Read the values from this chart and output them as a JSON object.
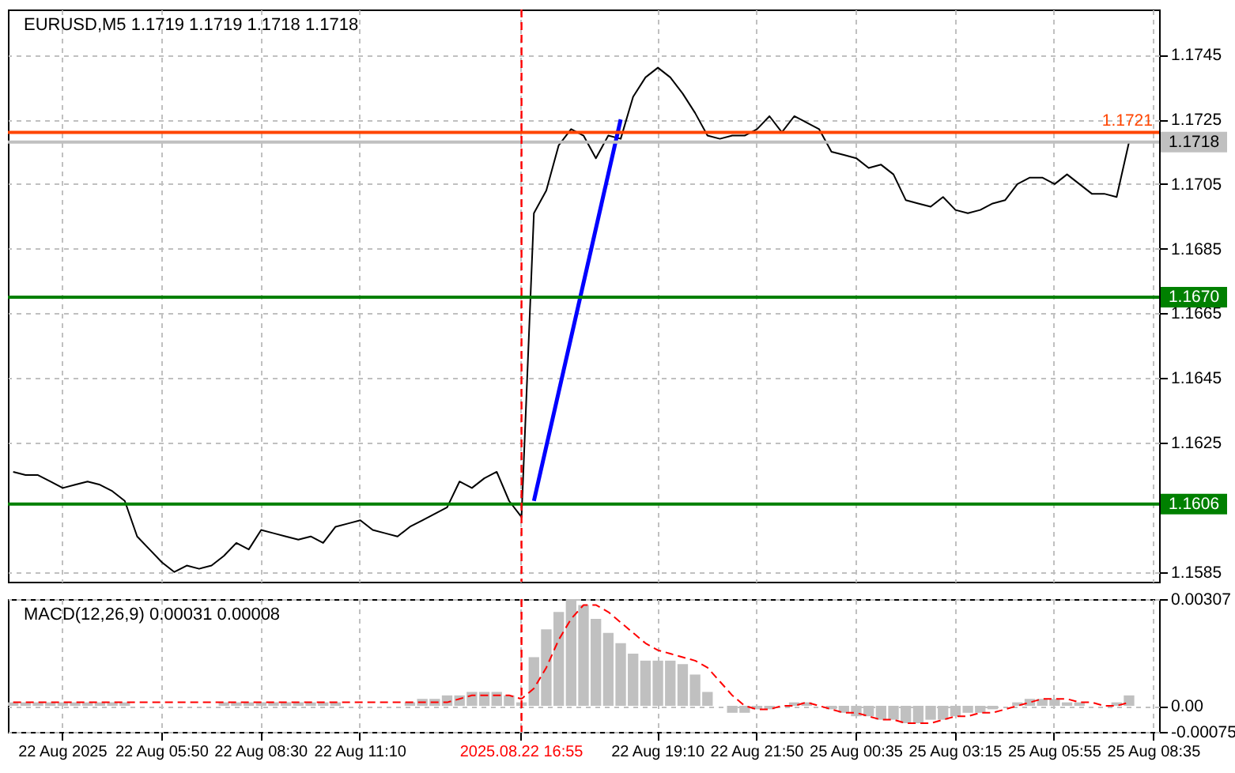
{
  "chart_data": [
    {
      "type": "line",
      "title": "EURUSD,M5 1.1719 1.1719 1.1718 1.1718",
      "categories": [
        null,
        null,
        null,
        null,
        "22 Aug 2025",
        null,
        null,
        null,
        null,
        null,
        null,
        null,
        "22 Aug 05:50",
        null,
        null,
        null,
        null,
        null,
        null,
        null,
        "22 Aug 08:30",
        null,
        null,
        null,
        null,
        null,
        null,
        null,
        "22 Aug 11:10",
        null,
        null,
        null,
        null,
        null,
        null,
        null,
        null,
        null,
        null,
        null,
        null,
        "2025.08.22 16:55",
        null,
        null,
        null,
        null,
        null,
        null,
        null,
        null,
        null,
        null,
        "22 Aug 19:10",
        null,
        null,
        null,
        null,
        null,
        null,
        null,
        "22 Aug 21:50",
        null,
        null,
        null,
        null,
        null,
        null,
        null,
        "25 Aug 00:35",
        null,
        null,
        null,
        null,
        null,
        null,
        null,
        "25 Aug 03:15",
        null,
        null,
        null,
        null,
        null,
        null,
        null,
        "25 Aug 05:55",
        null,
        null,
        null,
        null,
        null,
        null,
        null,
        "25 Aug 08:35"
      ],
      "series": [
        {
          "color": "#000000",
          "values": [
            1.1616,
            1.1615,
            1.1615,
            1.1613,
            1.1611,
            1.1612,
            1.1613,
            1.1612,
            1.161,
            1.1607,
            1.1596,
            1.1592,
            1.1588,
            1.1585,
            1.1587,
            1.1586,
            1.1587,
            1.159,
            1.1594,
            1.1592,
            1.1598,
            1.1597,
            1.1596,
            1.1595,
            1.1596,
            1.1594,
            1.1599,
            1.16,
            1.1601,
            1.1598,
            1.1597,
            1.1596,
            1.1599,
            1.1601,
            1.1603,
            1.1605,
            1.1613,
            1.1611,
            1.1614,
            1.1616,
            1.1607,
            1.1602,
            1.1696,
            1.1703,
            1.1717,
            1.1722,
            1.172,
            1.1713,
            1.172,
            1.1719,
            1.1732,
            1.1738,
            1.1741,
            1.1738,
            1.1733,
            1.1727,
            1.172,
            1.1719,
            1.172,
            1.172,
            1.1722,
            1.1726,
            1.1721,
            1.1726,
            1.1724,
            1.1722,
            1.1715,
            1.1714,
            1.1713,
            1.171,
            1.1711,
            1.1708,
            1.17,
            1.1699,
            1.1698,
            1.1701,
            1.1697,
            1.1696,
            1.1697,
            1.1699,
            1.17,
            1.1705,
            1.1707,
            1.1707,
            1.1705,
            1.1708,
            1.1705,
            1.1702,
            1.1702,
            1.1701,
            1.1718,
            null,
            null
          ]
        },
        {
          "type": "line",
          "color": "#0000ff",
          "values": [
            null,
            null,
            null,
            null,
            null,
            null,
            null,
            null,
            null,
            null,
            null,
            null,
            null,
            null,
            null,
            null,
            null,
            null,
            null,
            null,
            null,
            null,
            null,
            null,
            null,
            null,
            null,
            null,
            null,
            null,
            null,
            null,
            null,
            null,
            null,
            null,
            null,
            null,
            null,
            null,
            null,
            null,
            1.1607,
            null,
            null,
            null,
            null,
            null,
            null,
            1.1725,
            null,
            null,
            null,
            null,
            null,
            null,
            null,
            null,
            null,
            null,
            null,
            null,
            null,
            null,
            null,
            null,
            null,
            null,
            null,
            null,
            null,
            null,
            null,
            null,
            null,
            null,
            null,
            null,
            null,
            null,
            null,
            null,
            null,
            null,
            null,
            null,
            null,
            null,
            null,
            null,
            null,
            null,
            null
          ]
        }
      ],
      "ylim": [
        1.1582,
        1.1759
      ],
      "yticks": [
        1.1585,
        1.1625,
        1.1645,
        1.1665,
        1.1685,
        1.1705,
        1.1725,
        1.1745
      ],
      "grid": true,
      "tick_labels": "y",
      "ref_lines": [
        {
          "axis": "y",
          "value": 1.1721,
          "label": "1.1721",
          "color": "#ff4500"
        },
        {
          "axis": "y",
          "value": 1.1718,
          "label": "1.1718",
          "color": "#c0c0c0"
        },
        {
          "axis": "y",
          "value": 1.167,
          "label": "1.1670",
          "color": "#008000"
        },
        {
          "axis": "y",
          "value": 1.1606,
          "label": "1.1606",
          "color": "#008000"
        },
        {
          "axis": "x",
          "value": "2025.08.22 16:55",
          "color": "#ff0000",
          "line_style": "dashed"
        }
      ]
    },
    {
      "type": "bar",
      "title": "MACD(12,26,9) 0.00031 0.00008",
      "categories": [
        null,
        null,
        null,
        null,
        "22 Aug 2025",
        null,
        null,
        null,
        null,
        null,
        null,
        null,
        "22 Aug 05:50",
        null,
        null,
        null,
        null,
        null,
        null,
        null,
        "22 Aug 08:30",
        null,
        null,
        null,
        null,
        null,
        null,
        null,
        "22 Aug 11:10",
        null,
        null,
        null,
        null,
        null,
        null,
        null,
        null,
        null,
        null,
        null,
        null,
        "2025.08.22 16:55",
        null,
        null,
        null,
        null,
        null,
        null,
        null,
        null,
        null,
        null,
        "22 Aug 19:10",
        null,
        null,
        null,
        null,
        null,
        null,
        null,
        "22 Aug 21:50",
        null,
        null,
        null,
        null,
        null,
        null,
        null,
        "25 Aug 00:35",
        null,
        null,
        null,
        null,
        null,
        null,
        null,
        "25 Aug 03:15",
        null,
        null,
        null,
        null,
        null,
        null,
        null,
        "25 Aug 05:55",
        null,
        null,
        null,
        null,
        null,
        null,
        null,
        "25 Aug 08:35"
      ],
      "series": [
        {
          "color": "#c0c0c0",
          "values": [
            0.0001,
            0.0001,
            0.0001,
            0.0001,
            0.0001,
            0.0001,
            0.0001,
            0.0001,
            0.0001,
            0.0001,
            0,
            0,
            0,
            0,
            0,
            0,
            0,
            0.0001,
            0.0001,
            0.0001,
            0.0001,
            0.0001,
            0.0001,
            0.0001,
            0.0001,
            0.0001,
            0.0001,
            0,
            0,
            0,
            0,
            0,
            0.0001,
            0.0002,
            0.0002,
            0.0003,
            0.0003,
            0.0004,
            0.0004,
            0.0004,
            0.0003,
            0.0001,
            0.0014,
            0.0022,
            0.0027,
            0.00307,
            0.0029,
            0.0025,
            0.0021,
            0.0018,
            0.0015,
            0.0013,
            0.0013,
            0.0013,
            0.0012,
            0.0009,
            0.0004,
            0,
            -0.0002,
            -0.0002,
            -0.0001,
            -0.0001,
            0,
            0.0001,
            0.0001,
            0,
            -0.0001,
            -0.0002,
            -0.0003,
            -0.0003,
            -0.0004,
            -0.0004,
            -0.0005,
            -0.0005,
            -0.0004,
            -0.0004,
            -0.0003,
            -0.0002,
            -0.0002,
            -0.0001,
            0,
            0.0001,
            0.0002,
            0.0002,
            0.0002,
            0.0001,
            0.0001,
            0,
            0,
            0.0001,
            0.0003,
            null,
            null
          ]
        },
        {
          "type": "line",
          "color": "#ff0000",
          "line_style": "dashed",
          "values": [
            0.0001,
            0.0001,
            0.0001,
            0.0001,
            0.0001,
            0.0001,
            0.0001,
            0.0001,
            0.0001,
            0.0001,
            0.0001,
            0.0001,
            0.0001,
            0.0001,
            0.0001,
            0.0001,
            0.0001,
            0.0001,
            0.0001,
            0.0001,
            0.0001,
            0.0001,
            0.0001,
            0.0001,
            0.0001,
            0.0001,
            0.0001,
            0.0001,
            0.0001,
            0.0001,
            0.0001,
            0.0001,
            0.0001,
            0.0001,
            0.0001,
            0.0001,
            0.0002,
            0.0003,
            0.0003,
            0.0003,
            0.0003,
            0.0002,
            0.0005,
            0.0011,
            0.0019,
            0.0025,
            0.0029,
            0.0029,
            0.0027,
            0.0024,
            0.0021,
            0.0018,
            0.0016,
            0.0015,
            0.0014,
            0.0013,
            0.0011,
            0.0007,
            0.0003,
            0,
            -0.0001,
            -0.0001,
            0,
            0,
            0.0001,
            0,
            -0.0001,
            -0.0002,
            -0.0002,
            -0.0003,
            -0.0004,
            -0.0004,
            -0.0005,
            -0.0005,
            -0.0005,
            -0.0004,
            -0.0003,
            -0.0003,
            -0.0002,
            -0.0002,
            -0.0001,
            0,
            0.0001,
            0.0002,
            0.0002,
            0.0002,
            0.0001,
            0.0001,
            0,
            0,
            0.0001,
            null,
            null
          ]
        }
      ],
      "ylim": [
        -0.00075,
        0.00307
      ],
      "yticks": [
        -0.00075,
        {
          "value": 0,
          "label": "0.00"
        },
        0.00307
      ],
      "grid": true,
      "ref_lines": [
        {
          "axis": "x",
          "value": "2025.08.22 16:55",
          "color": "#ff0000",
          "line_style": "dashed"
        }
      ]
    }
  ]
}
